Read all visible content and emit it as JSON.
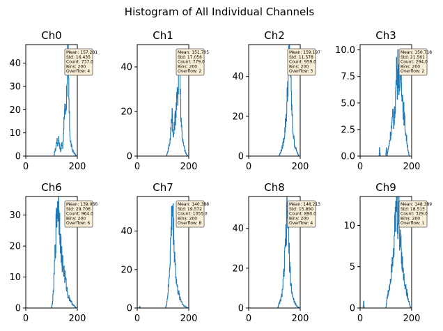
{
  "suptitle": "Histogram of All Individual Channels",
  "chart_data": [
    {
      "type": "histogram",
      "title": "Ch0",
      "xlim": [
        0,
        200
      ],
      "ylim": [
        0,
        48
      ],
      "xticks": [
        "0",
        "200"
      ],
      "yticks": [
        0,
        10,
        20,
        30,
        40
      ],
      "ytick_labels": [
        "0",
        "10",
        "20",
        "30",
        "40"
      ],
      "stats": [
        "Mean: 157.281",
        "Std: 16.435",
        "Count: 737.0",
        "Bins: 200",
        "Overflow: 4"
      ],
      "profile": [
        [
          110,
          0
        ],
        [
          112,
          2
        ],
        [
          116,
          3
        ],
        [
          120,
          7
        ],
        [
          124,
          5
        ],
        [
          128,
          8
        ],
        [
          132,
          4
        ],
        [
          136,
          2
        ],
        [
          140,
          6
        ],
        [
          144,
          4
        ],
        [
          148,
          12
        ],
        [
          150,
          20
        ],
        [
          152,
          24
        ],
        [
          154,
          18
        ],
        [
          156,
          22
        ],
        [
          158,
          25
        ],
        [
          160,
          35
        ],
        [
          162,
          40
        ],
        [
          164,
          46
        ],
        [
          166,
          34
        ],
        [
          168,
          20
        ],
        [
          170,
          14
        ],
        [
          172,
          8
        ],
        [
          176,
          5
        ],
        [
          180,
          3
        ],
        [
          184,
          2
        ],
        [
          190,
          1
        ],
        [
          196,
          0
        ]
      ]
    },
    {
      "type": "histogram",
      "title": "Ch1",
      "xlim": [
        0,
        200
      ],
      "ylim": [
        0,
        50
      ],
      "xticks": [
        "0",
        "200"
      ],
      "yticks": [
        0,
        20,
        40
      ],
      "ytick_labels": [
        "0",
        "20",
        "40"
      ],
      "stats": [
        "Mean: 151.705",
        "Std: 17.056",
        "Count: 779.0",
        "Bins: 200",
        "Overflow: 2"
      ],
      "profile": [
        [
          114,
          0
        ],
        [
          118,
          2
        ],
        [
          122,
          4
        ],
        [
          126,
          6
        ],
        [
          130,
          10
        ],
        [
          134,
          18
        ],
        [
          136,
          22
        ],
        [
          138,
          12
        ],
        [
          140,
          8
        ],
        [
          142,
          10
        ],
        [
          146,
          16
        ],
        [
          150,
          20
        ],
        [
          154,
          24
        ],
        [
          158,
          30
        ],
        [
          162,
          40
        ],
        [
          164,
          46
        ],
        [
          166,
          38
        ],
        [
          168,
          26
        ],
        [
          170,
          18
        ],
        [
          174,
          10
        ],
        [
          178,
          6
        ],
        [
          184,
          3
        ],
        [
          190,
          1
        ],
        [
          196,
          0
        ]
      ]
    },
    {
      "type": "histogram",
      "title": "Ch2",
      "xlim": [
        0,
        200
      ],
      "ylim": [
        0,
        56
      ],
      "xticks": [
        "0",
        "200"
      ],
      "yticks": [
        0,
        20,
        40
      ],
      "ytick_labels": [
        "0",
        "20",
        "40"
      ],
      "stats": [
        "Mean: 159.197",
        "Std: 11.578",
        "Count: 959.0",
        "Bins: 200",
        "Overflow: 3"
      ],
      "profile": [
        [
          118,
          0
        ],
        [
          124,
          2
        ],
        [
          130,
          4
        ],
        [
          136,
          8
        ],
        [
          140,
          12
        ],
        [
          144,
          18
        ],
        [
          148,
          24
        ],
        [
          150,
          30
        ],
        [
          152,
          38
        ],
        [
          154,
          44
        ],
        [
          156,
          48
        ],
        [
          158,
          52
        ],
        [
          160,
          50
        ],
        [
          162,
          44
        ],
        [
          164,
          36
        ],
        [
          166,
          28
        ],
        [
          168,
          22
        ],
        [
          170,
          16
        ],
        [
          174,
          10
        ],
        [
          178,
          6
        ],
        [
          182,
          4
        ],
        [
          188,
          2
        ],
        [
          194,
          0
        ]
      ]
    },
    {
      "type": "histogram",
      "title": "Ch3",
      "xlim": [
        0,
        200
      ],
      "ylim": [
        0,
        10.5
      ],
      "xticks": [
        "0",
        "200"
      ],
      "yticks": [
        0,
        2.5,
        5,
        7.5,
        10
      ],
      "ytick_labels": [
        "0.0",
        "2.5",
        "5.0",
        "7.5",
        "10.0"
      ],
      "stats": [
        "Mean: 150.718",
        "Std: 21.561",
        "Count: 294.0",
        "Bins: 200",
        "Overflow: 2"
      ],
      "profile": [
        [
          74,
          0
        ],
        [
          76,
          1
        ],
        [
          78,
          0
        ],
        [
          100,
          0
        ],
        [
          102,
          1
        ],
        [
          104,
          0
        ],
        [
          112,
          1
        ],
        [
          118,
          2
        ],
        [
          124,
          3
        ],
        [
          128,
          4
        ],
        [
          132,
          3
        ],
        [
          136,
          5
        ],
        [
          140,
          7
        ],
        [
          142,
          9
        ],
        [
          144,
          6
        ],
        [
          146,
          10
        ],
        [
          148,
          8
        ],
        [
          150,
          7
        ],
        [
          152,
          9
        ],
        [
          154,
          5
        ],
        [
          156,
          6
        ],
        [
          158,
          8
        ],
        [
          162,
          7
        ],
        [
          166,
          5
        ],
        [
          170,
          4
        ],
        [
          174,
          3
        ],
        [
          178,
          2
        ],
        [
          184,
          1
        ],
        [
          190,
          0
        ]
      ]
    },
    {
      "type": "histogram",
      "title": "Ch6",
      "xlim": [
        0,
        200
      ],
      "ylim": [
        0,
        36
      ],
      "xticks": [
        "0",
        "200"
      ],
      "yticks": [
        0,
        10,
        20,
        30
      ],
      "ytick_labels": [
        "0",
        "10",
        "20",
        "30"
      ],
      "stats": [
        "Mean: 139.066",
        "Std: 29.706",
        "Count: 964.0",
        "Bins: 200",
        "Overflow: 6"
      ],
      "profile": [
        [
          100,
          0
        ],
        [
          104,
          2
        ],
        [
          108,
          6
        ],
        [
          112,
          14
        ],
        [
          116,
          22
        ],
        [
          120,
          30
        ],
        [
          124,
          34
        ],
        [
          128,
          32
        ],
        [
          132,
          28
        ],
        [
          136,
          20
        ],
        [
          140,
          16
        ],
        [
          144,
          14
        ],
        [
          148,
          12
        ],
        [
          152,
          10
        ],
        [
          156,
          8
        ],
        [
          160,
          6
        ],
        [
          164,
          4
        ],
        [
          170,
          3
        ],
        [
          176,
          2
        ],
        [
          184,
          1
        ],
        [
          196,
          0
        ]
      ]
    },
    {
      "type": "histogram",
      "title": "Ch7",
      "xlim": [
        0,
        200
      ],
      "ylim": [
        0,
        58
      ],
      "xticks": [
        "0",
        "200"
      ],
      "yticks": [
        0,
        20,
        40
      ],
      "ytick_labels": [
        "0",
        "20",
        "40"
      ],
      "stats": [
        "Mean: 140.388",
        "Std: 19.572",
        "Count: 1055.0",
        "Bins: 200",
        "Overflow: 8"
      ],
      "profile": [
        [
          8,
          0
        ],
        [
          10,
          1
        ],
        [
          12,
          0
        ],
        [
          110,
          0
        ],
        [
          114,
          2
        ],
        [
          118,
          6
        ],
        [
          122,
          12
        ],
        [
          126,
          22
        ],
        [
          130,
          34
        ],
        [
          134,
          46
        ],
        [
          136,
          54
        ],
        [
          138,
          50
        ],
        [
          140,
          44
        ],
        [
          144,
          32
        ],
        [
          148,
          22
        ],
        [
          152,
          14
        ],
        [
          156,
          10
        ],
        [
          160,
          8
        ],
        [
          164,
          6
        ],
        [
          170,
          4
        ],
        [
          176,
          2
        ],
        [
          184,
          1
        ],
        [
          196,
          0
        ]
      ]
    },
    {
      "type": "histogram",
      "title": "Ch8",
      "xlim": [
        0,
        200
      ],
      "ylim": [
        0,
        56
      ],
      "xticks": [
        "0",
        "200"
      ],
      "yticks": [
        0,
        20,
        40
      ],
      "ytick_labels": [
        "0",
        "20",
        "40"
      ],
      "stats": [
        "Mean: 148.213",
        "Std: 15.890",
        "Count: 890.0",
        "Bins: 200",
        "Overflow: 4"
      ],
      "profile": [
        [
          112,
          0
        ],
        [
          118,
          2
        ],
        [
          124,
          4
        ],
        [
          128,
          6
        ],
        [
          132,
          10
        ],
        [
          136,
          16
        ],
        [
          140,
          24
        ],
        [
          144,
          34
        ],
        [
          148,
          44
        ],
        [
          150,
          50
        ],
        [
          152,
          46
        ],
        [
          154,
          38
        ],
        [
          156,
          30
        ],
        [
          160,
          20
        ],
        [
          164,
          12
        ],
        [
          168,
          8
        ],
        [
          172,
          5
        ],
        [
          178,
          3
        ],
        [
          186,
          1
        ],
        [
          196,
          0
        ]
      ]
    },
    {
      "type": "histogram",
      "title": "Ch9",
      "xlim": [
        0,
        200
      ],
      "ylim": [
        0,
        13.5
      ],
      "xticks": [
        "0",
        "200"
      ],
      "yticks": [
        0,
        5,
        10
      ],
      "ytick_labels": [
        "0",
        "5",
        "10"
      ],
      "stats": [
        "Mean: 148.389",
        "Std: 18.515",
        "Count: 329.0",
        "Bins: 200",
        "Overflow: 1"
      ],
      "profile": [
        [
          12,
          0
        ],
        [
          14,
          1
        ],
        [
          16,
          0
        ],
        [
          100,
          0
        ],
        [
          104,
          1
        ],
        [
          110,
          2
        ],
        [
          116,
          3
        ],
        [
          122,
          5
        ],
        [
          128,
          7
        ],
        [
          134,
          9
        ],
        [
          138,
          11
        ],
        [
          142,
          13
        ],
        [
          146,
          10
        ],
        [
          150,
          12
        ],
        [
          154,
          8
        ],
        [
          158,
          9
        ],
        [
          162,
          6
        ],
        [
          168,
          4
        ],
        [
          174,
          3
        ],
        [
          180,
          2
        ],
        [
          188,
          1
        ],
        [
          196,
          0
        ]
      ]
    }
  ],
  "colors": {
    "line": "#1f77b4",
    "box_fill": "#fbeed6",
    "box_edge": "#555555"
  }
}
